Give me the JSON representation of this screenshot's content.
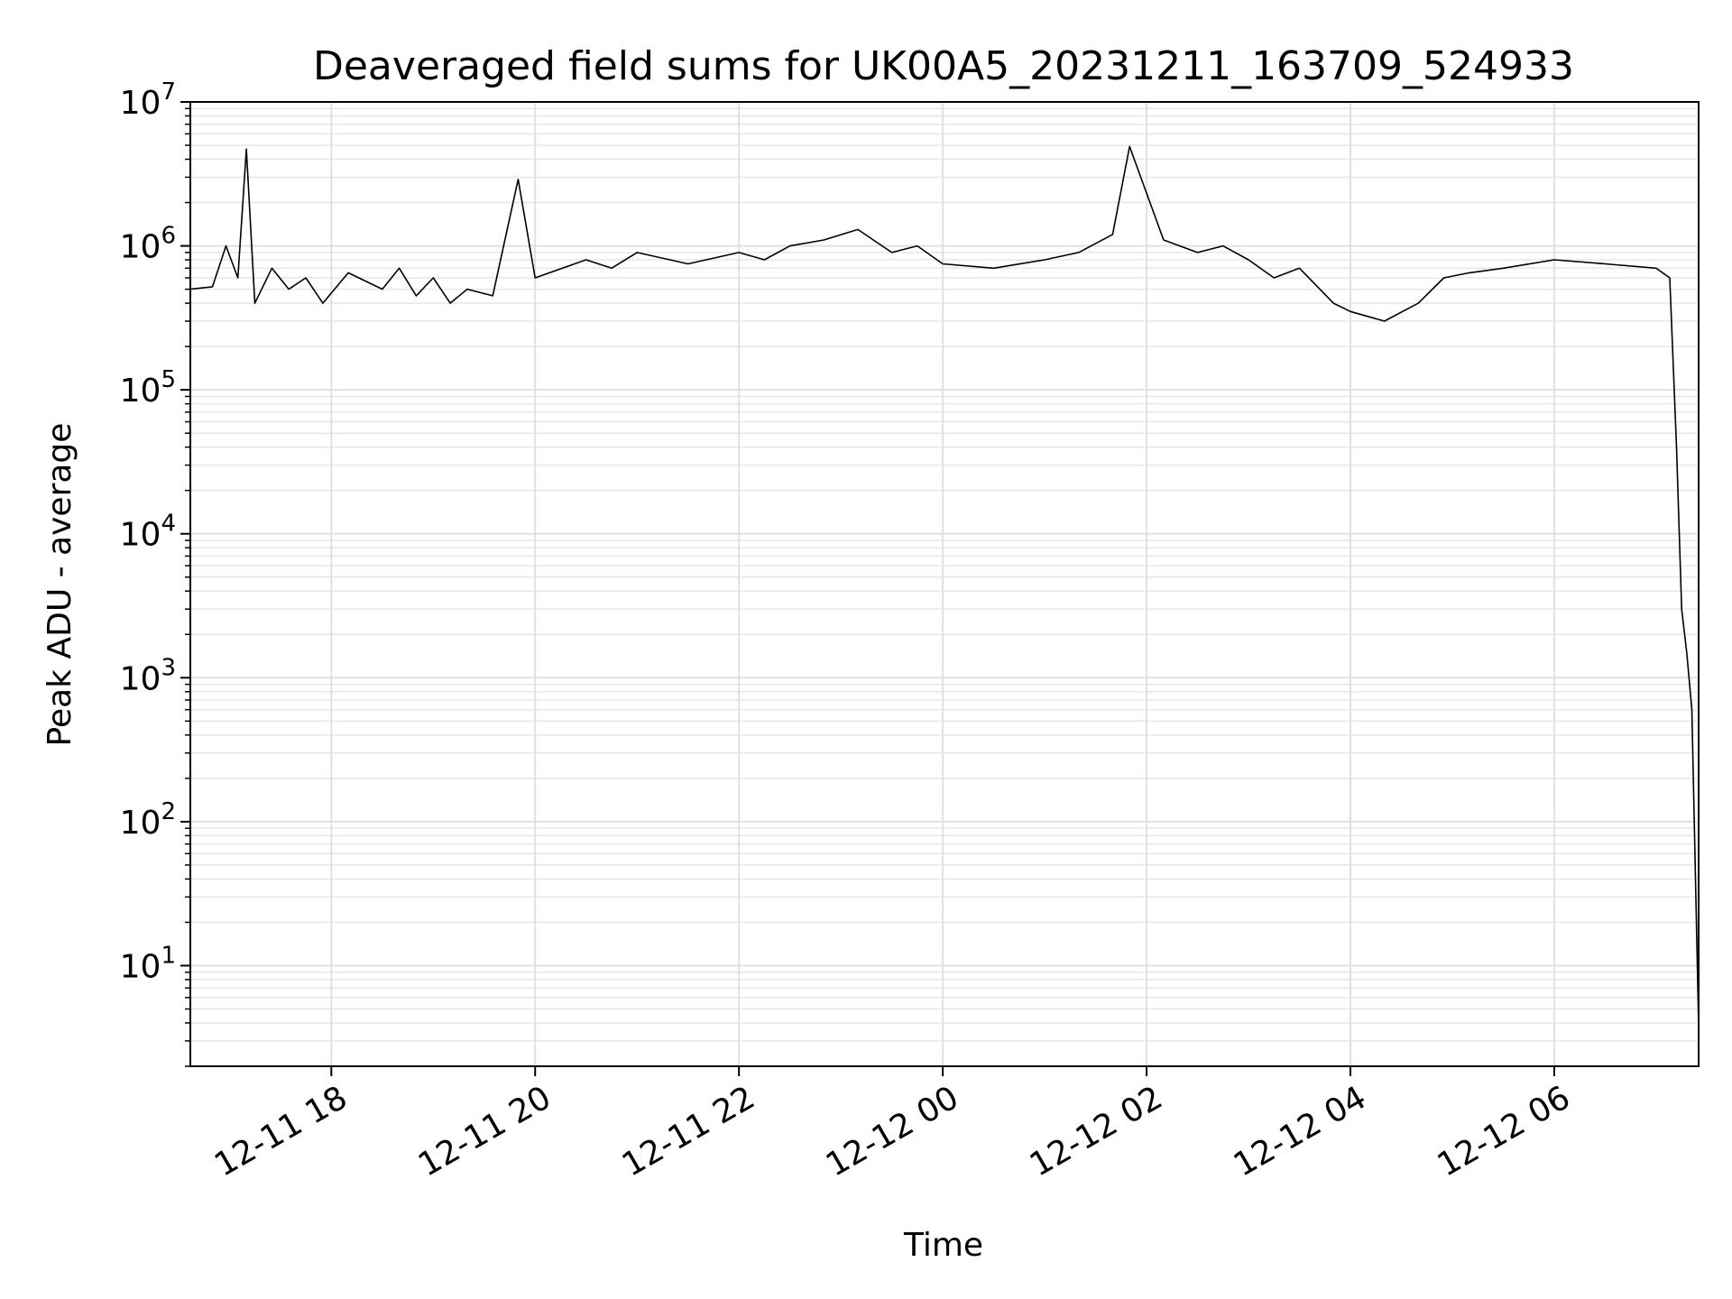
{
  "chart_data": {
    "type": "line",
    "title": "Deaveraged field sums for UK00A5_20231211_163709_524933",
    "xlabel": "Time",
    "ylabel": "Peak ADU - average",
    "yscale": "log",
    "xlim": [
      "2023-12-11 16:37",
      "2023-12-12 07:25"
    ],
    "ylim": [
      2,
      10000000
    ],
    "grid": true,
    "line_color": "#000000",
    "x_ticks": [
      {
        "value": "2023-12-11 18:00",
        "label": "12-11 18"
      },
      {
        "value": "2023-12-11 20:00",
        "label": "12-11 20"
      },
      {
        "value": "2023-12-11 22:00",
        "label": "12-11 22"
      },
      {
        "value": "2023-12-12 00:00",
        "label": "12-12 00"
      },
      {
        "value": "2023-12-12 02:00",
        "label": "12-12 02"
      },
      {
        "value": "2023-12-12 04:00",
        "label": "12-12 04"
      },
      {
        "value": "2023-12-12 06:00",
        "label": "12-12 06"
      }
    ],
    "y_ticks": [
      {
        "value": 10,
        "base": "10",
        "exp": "1"
      },
      {
        "value": 100,
        "base": "10",
        "exp": "2"
      },
      {
        "value": 1000,
        "base": "10",
        "exp": "3"
      },
      {
        "value": 10000,
        "base": "10",
        "exp": "4"
      },
      {
        "value": 100000,
        "base": "10",
        "exp": "5"
      },
      {
        "value": 1000000,
        "base": "10",
        "exp": "6"
      },
      {
        "value": 10000000,
        "base": "10",
        "exp": "7"
      }
    ],
    "series": [
      {
        "x": [
          "2023-12-11 16:37",
          "2023-12-11 16:50",
          "2023-12-11 16:58",
          "2023-12-11 17:05",
          "2023-12-11 17:10",
          "2023-12-11 17:15",
          "2023-12-11 17:25",
          "2023-12-11 17:35",
          "2023-12-11 17:45",
          "2023-12-11 17:55",
          "2023-12-11 18:10",
          "2023-12-11 18:30",
          "2023-12-11 18:40",
          "2023-12-11 18:50",
          "2023-12-11 19:00",
          "2023-12-11 19:10",
          "2023-12-11 19:20",
          "2023-12-11 19:35",
          "2023-12-11 19:50",
          "2023-12-11 20:00",
          "2023-12-11 20:30",
          "2023-12-11 20:45",
          "2023-12-11 21:00",
          "2023-12-11 21:30",
          "2023-12-11 22:00",
          "2023-12-11 22:15",
          "2023-12-11 22:30",
          "2023-12-11 22:50",
          "2023-12-11 23:10",
          "2023-12-11 23:30",
          "2023-12-11 23:45",
          "2023-12-12 00:00",
          "2023-12-12 00:30",
          "2023-12-12 01:00",
          "2023-12-12 01:20",
          "2023-12-12 01:40",
          "2023-12-12 01:50",
          "2023-12-12 02:10",
          "2023-12-12 02:30",
          "2023-12-12 02:45",
          "2023-12-12 03:00",
          "2023-12-12 03:15",
          "2023-12-12 03:30",
          "2023-12-12 03:50",
          "2023-12-12 04:00",
          "2023-12-12 04:20",
          "2023-12-12 04:40",
          "2023-12-12 04:55",
          "2023-12-12 05:10",
          "2023-12-12 05:30",
          "2023-12-12 06:00",
          "2023-12-12 06:30",
          "2023-12-12 07:00",
          "2023-12-12 07:08",
          "2023-12-12 07:12",
          "2023-12-12 07:15",
          "2023-12-12 07:18",
          "2023-12-12 07:21",
          "2023-12-12 07:23",
          "2023-12-12 07:25"
        ],
        "y": [
          500000,
          520000,
          1000000,
          600000,
          4700000,
          400000,
          700000,
          500000,
          600000,
          400000,
          650000,
          500000,
          700000,
          450000,
          600000,
          400000,
          500000,
          450000,
          2900000,
          600000,
          800000,
          700000,
          900000,
          750000,
          900000,
          800000,
          1000000,
          1100000,
          1300000,
          900000,
          1000000,
          750000,
          700000,
          800000,
          900000,
          1200000,
          4900000,
          1100000,
          900000,
          1000000,
          800000,
          600000,
          700000,
          400000,
          350000,
          300000,
          400000,
          600000,
          650000,
          700000,
          800000,
          750000,
          700000,
          600000,
          40000,
          3000,
          1500,
          600,
          50,
          3.8
        ]
      }
    ]
  }
}
